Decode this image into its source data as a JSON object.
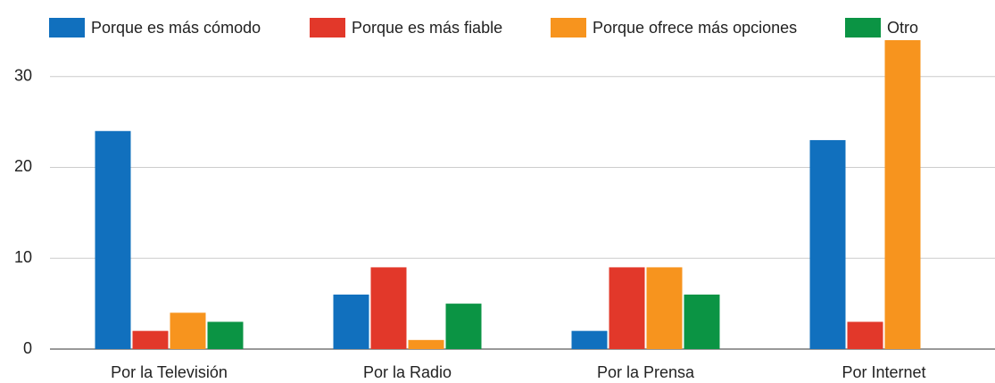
{
  "chart_data": {
    "type": "bar",
    "categories": [
      "Por la Televisión",
      "Por la Radio",
      "Por la Prensa",
      "Por Internet"
    ],
    "series": [
      {
        "name": "Porque es más cómodo",
        "color": "#1170be",
        "values": [
          24,
          6,
          2,
          23
        ]
      },
      {
        "name": "Porque es más fiable",
        "color": "#e2382a",
        "values": [
          2,
          9,
          9,
          3
        ]
      },
      {
        "name": "Porque ofrece más opciones",
        "color": "#f7941e",
        "values": [
          4,
          1,
          9,
          34
        ]
      },
      {
        "name": "Otro",
        "color": "#0b9444",
        "values": [
          3,
          5,
          6,
          0
        ]
      }
    ],
    "ylim": [
      0,
      34
    ],
    "yticks": [
      0,
      10,
      20,
      30
    ],
    "grid": true,
    "legend": "top"
  }
}
